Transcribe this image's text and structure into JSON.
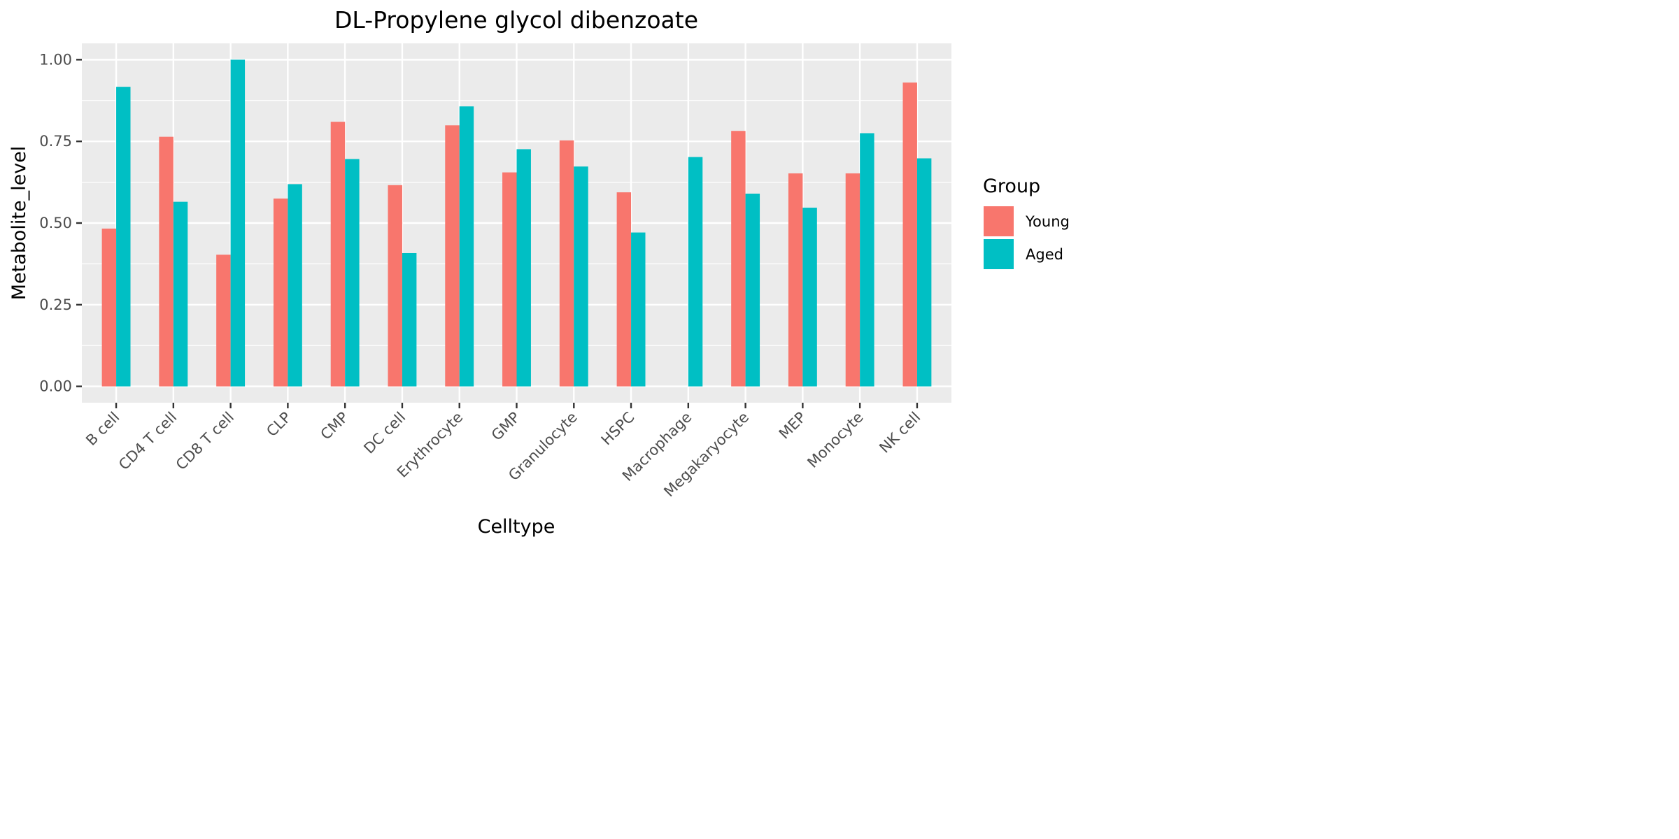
{
  "chart_data": {
    "type": "bar",
    "title": "DL-Propylene glycol dibenzoate",
    "xlabel": "Celltype",
    "ylabel": "Metabolite_level",
    "categories": [
      "B cell",
      "CD4 T cell",
      "CD8 T cell",
      "CLP",
      "CMP",
      "DC cell",
      "Erythrocyte",
      "GMP",
      "Granulocyte",
      "HSPC",
      "Macrophage",
      "Megakaryocyte",
      "MEP",
      "Monocyte",
      "NK cell"
    ],
    "series": [
      {
        "name": "Young",
        "color": "#F8766D",
        "values": [
          0.483,
          0.764,
          0.403,
          0.575,
          0.81,
          0.616,
          0.799,
          0.655,
          0.753,
          0.594,
          null,
          0.782,
          0.652,
          0.652,
          0.93
        ]
      },
      {
        "name": "Aged",
        "color": "#00BFC4",
        "values": [
          0.917,
          0.565,
          1.0,
          0.619,
          0.696,
          0.408,
          0.857,
          0.726,
          0.673,
          0.471,
          0.702,
          0.59,
          0.547,
          0.775,
          0.698
        ]
      }
    ],
    "ylim": [
      -0.05,
      1.05
    ],
    "yticks": [
      0,
      0.25,
      0.5,
      0.75,
      1
    ],
    "ytick_labels": [
      "0.00",
      "0.25",
      "0.50",
      "0.75",
      "1.00"
    ],
    "grid": true,
    "legend": {
      "title": "Group",
      "position": "right"
    }
  }
}
